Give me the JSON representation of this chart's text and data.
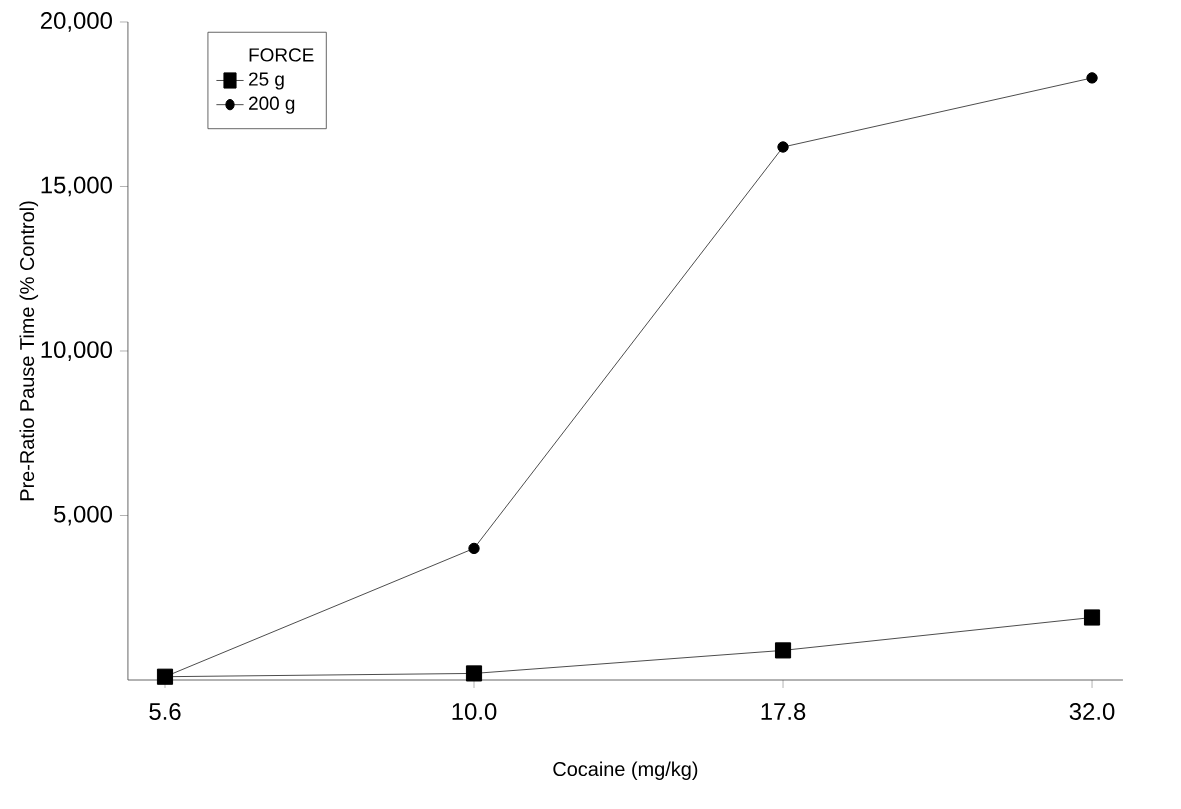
{
  "chart_data": {
    "type": "line",
    "xlabel": "Cocaine (mg/kg)",
    "ylabel": "Pre-Ratio Pause Time (% Control)",
    "categories": [
      "5.6",
      "10.0",
      "17.8",
      "32.0"
    ],
    "series": [
      {
        "name": "25 g",
        "color": "#000000",
        "marker": "square",
        "values": [
          100,
          200,
          900,
          1900
        ]
      },
      {
        "name": "200 g",
        "color": "#000000",
        "marker": "circle",
        "values": [
          100,
          4000,
          16200,
          18300
        ]
      }
    ],
    "ylim": [
      0,
      20000
    ],
    "yticks": [
      {
        "value": 5000,
        "label": "5,000"
      },
      {
        "value": 10000,
        "label": "10,000"
      },
      {
        "value": 15000,
        "label": "15,000"
      },
      {
        "value": 20000,
        "label": "20,000"
      }
    ],
    "legend_title": "FORCE",
    "legend": "top left",
    "grid": false,
    "line_style": "solid"
  }
}
